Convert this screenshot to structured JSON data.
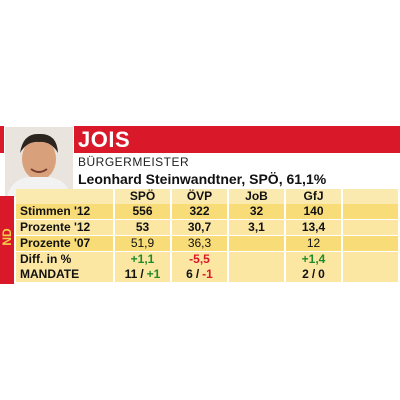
{
  "header": {
    "title": "JOIS",
    "role": "BÜRGERMEISTER",
    "mayor": "Leonhard Steinwandtner, SPÖ, 61,1%",
    "region": "ND"
  },
  "table": {
    "columns": [
      "SPÖ",
      "ÖVP",
      "JoB",
      "GfJ"
    ],
    "rows": [
      {
        "label": "Stimmen '12",
        "cells": [
          "556",
          "322",
          "32",
          "140"
        ]
      },
      {
        "label": "Prozente '12",
        "cells": [
          "53",
          "30,7",
          "3,1",
          "13,4"
        ]
      },
      {
        "label": "Prozente '07",
        "cells": [
          "51,9",
          "36,3",
          null,
          "12"
        ]
      },
      {
        "label": "Diff. in %",
        "cells": [
          "+1,1",
          "-5,5",
          null,
          "+1,4"
        ]
      }
    ],
    "mandate": {
      "label": "MANDATE",
      "cells": [
        {
          "seats": "11",
          "separator": "/",
          "change": "+1"
        },
        {
          "seats": "6",
          "separator": "/",
          "change": "-1"
        },
        null,
        {
          "seats": "2",
          "separator": "/",
          "change": "0"
        }
      ]
    }
  }
}
